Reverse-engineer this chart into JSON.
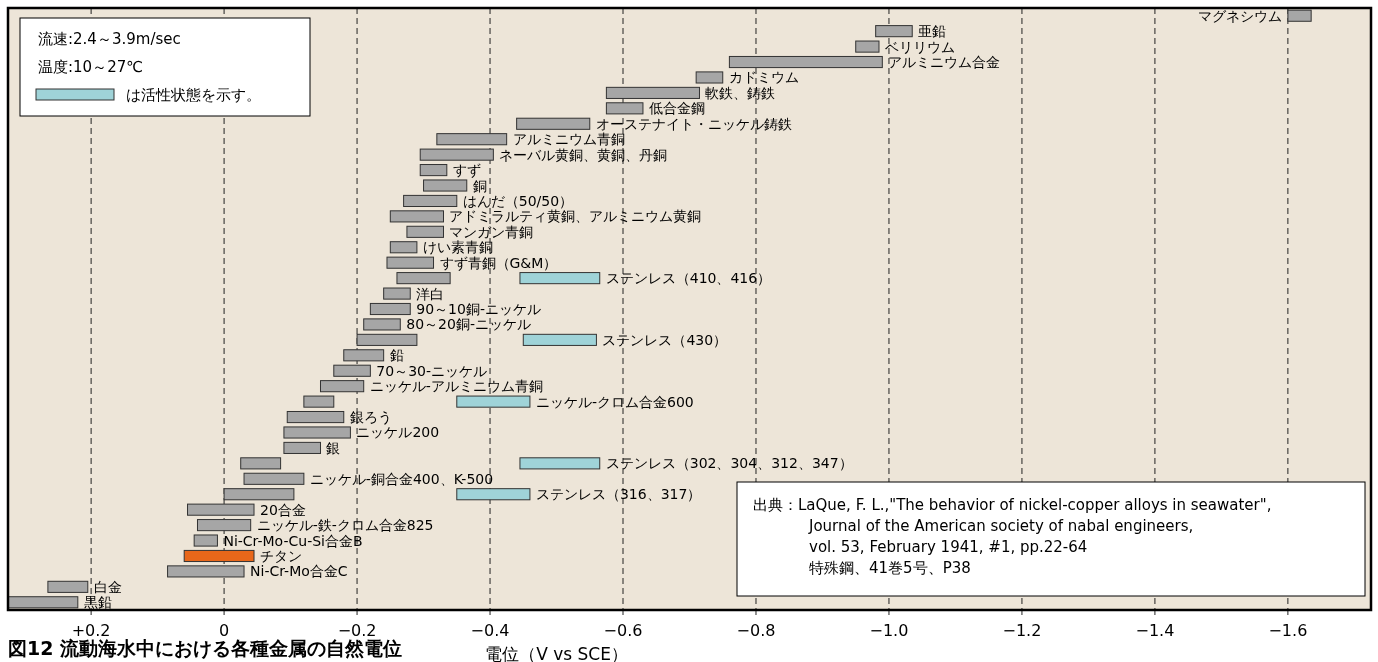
{
  "chart_data": {
    "type": "bar",
    "orientation": "horizontal",
    "title": "図12 流動海水中における各種金属の自然電位",
    "xlabel": "電位（V vs SCE）",
    "legend_title": "流速:2.4～3.9m/sec\n温度:10～27℃",
    "legend": "top left",
    "grid": "x",
    "annotations": [
      "出典：LaQue, F. L.,\"The behavior of nickel-copper alloys in seawater\",\nJournal of the American society of nabal engineers,\nvol. 53, February 1941, #1, pp.22-64\n特殊鋼、41巻5号、P38"
    ],
    "xlim": [
      0.325,
      -1.725
    ],
    "xticks": [
      {
        "value": 0.2,
        "label": "+0.2"
      },
      0,
      {
        "value": -0.2,
        "label": "−0.2"
      },
      {
        "value": -0.4,
        "label": "−0.4"
      },
      {
        "value": -0.6,
        "label": "−0.6"
      },
      {
        "value": -0.8,
        "label": "−0.8"
      },
      {
        "value": -1.0,
        "label": "−1.0"
      },
      {
        "value": -1.2,
        "label": "−1.2"
      },
      {
        "value": -1.4,
        "label": "−1.4"
      },
      {
        "value": -1.6,
        "label": "−1.6"
      }
    ],
    "categories": [
      "マグネシウム",
      "亜鉛",
      "ベリリウム",
      "アルミニウム合金",
      "カドミウム",
      "軟鉄、鋳鉄",
      "低合金鋼",
      "オーステナイト・ニッケル鋳鉄",
      "アルミニウム青銅",
      "ネーバル黄銅、黄銅、丹銅",
      "すず",
      "銅",
      "はんだ（50/50）",
      "アドミラルティ黄銅、アルミニウム黄銅",
      "マンガン青銅",
      "けい素青銅",
      "すず青銅（G&M）",
      "ステンレス（410、416）",
      "洋白",
      "90～10銅-ニッケル",
      "80～20銅-ニッケル",
      "ステンレス（430）",
      "鉛",
      "70～30-ニッケル",
      "ニッケル-アルミニウム青銅",
      "ニッケル-クロム合金600",
      "銀ろう",
      "ニッケル200",
      "銀",
      "ステンレス（302、304、312、347）",
      "ニッケル-銅合金400、K-500",
      "ステンレス（316、317）",
      "20合金",
      "ニッケル-鉄-クロム合金825",
      "Ni-Cr-Mo-Cu-Si合金B",
      "チタン",
      "Ni-Cr-Mo合金C",
      "白金",
      "黒鉛"
    ],
    "series": [
      {
        "color": "#a6a6a6",
        "colors": [
          null,
          null,
          null,
          null,
          null,
          null,
          null,
          null,
          null,
          null,
          null,
          null,
          null,
          null,
          null,
          null,
          null,
          null,
          null,
          null,
          null,
          null,
          null,
          null,
          null,
          null,
          null,
          null,
          null,
          null,
          null,
          null,
          null,
          null,
          null,
          "#e8671a",
          null,
          null,
          null
        ],
        "base": [
          -1.635,
          -1.035,
          -0.985,
          -0.99,
          -0.75,
          -0.715,
          -0.63,
          -0.55,
          -0.425,
          -0.405,
          -0.335,
          -0.365,
          -0.35,
          -0.33,
          -0.33,
          -0.29,
          -0.315,
          -0.34,
          -0.28,
          -0.28,
          -0.265,
          -0.29,
          -0.24,
          -0.22,
          -0.21,
          -0.165,
          -0.18,
          -0.19,
          -0.145,
          -0.085,
          -0.12,
          -0.105,
          -0.045,
          -0.04,
          0.01,
          -0.045,
          -0.03,
          0.205,
          0.22
        ],
        "values": [
          0.035,
          0.055,
          0.035,
          0.23,
          0.04,
          0.14,
          0.055,
          0.11,
          0.105,
          0.11,
          0.04,
          0.065,
          0.08,
          0.08,
          0.055,
          0.04,
          0.07,
          0.08,
          0.04,
          0.06,
          0.055,
          0.09,
          0.06,
          0.055,
          0.065,
          0.045,
          0.085,
          0.1,
          0.055,
          0.06,
          0.09,
          0.105,
          0.1,
          0.08,
          0.035,
          0.105,
          0.115,
          0.06,
          0.105
        ]
      },
      {
        "name": "は活性状態を示す。",
        "color": "#9fd3d8",
        "base": [
          null,
          null,
          null,
          null,
          null,
          null,
          null,
          null,
          null,
          null,
          null,
          null,
          null,
          null,
          null,
          null,
          null,
          -0.565,
          null,
          null,
          null,
          -0.56,
          null,
          null,
          null,
          -0.46,
          null,
          null,
          null,
          -0.565,
          null,
          -0.46,
          null,
          null,
          null,
          null,
          null,
          null,
          null
        ],
        "values": [
          null,
          null,
          null,
          null,
          null,
          null,
          null,
          null,
          null,
          null,
          null,
          null,
          null,
          null,
          null,
          null,
          null,
          0.12,
          null,
          null,
          null,
          0.11,
          null,
          null,
          null,
          0.11,
          null,
          null,
          null,
          0.12,
          null,
          0.11,
          null,
          null,
          null,
          null,
          null,
          null,
          null
        ]
      }
    ]
  }
}
